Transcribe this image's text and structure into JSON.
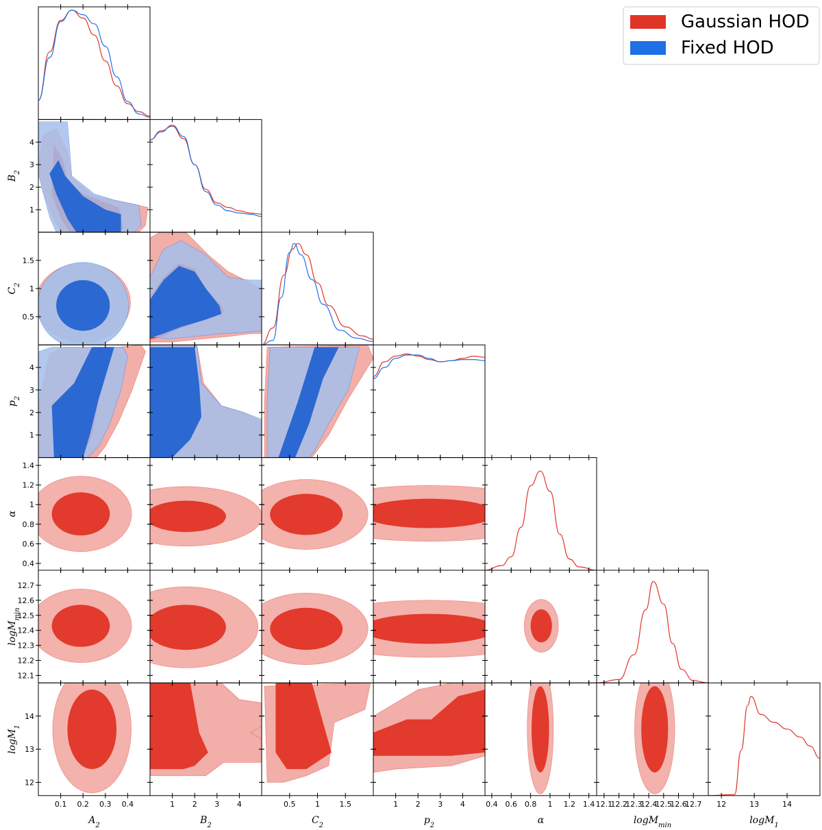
{
  "chart_data": {
    "type": "corner",
    "parameters": [
      {
        "key": "A2",
        "label": "A",
        "sub": "2",
        "range": [
          0.0,
          0.5
        ],
        "ticks": [
          0.1,
          0.2,
          0.3,
          0.4
        ]
      },
      {
        "key": "B2",
        "label": "B",
        "sub": "2",
        "range": [
          0.0,
          5.0
        ],
        "ticks": [
          1,
          2,
          3,
          4
        ]
      },
      {
        "key": "C2",
        "label": "C",
        "sub": "2",
        "range": [
          0.0,
          2.0
        ],
        "ticks": [
          0.5,
          1.0,
          1.5
        ]
      },
      {
        "key": "p2",
        "label": "p",
        "sub": "2",
        "range": [
          0.0,
          5.0
        ],
        "ticks": [
          1,
          2,
          3,
          4
        ]
      },
      {
        "key": "alpha",
        "label": "α",
        "sub": "",
        "range": [
          0.33,
          1.48
        ],
        "ticks": [
          0.4,
          0.6,
          0.8,
          1.0,
          1.2,
          1.4
        ]
      },
      {
        "key": "logMmin",
        "label": "logM",
        "sub": "min",
        "range": [
          12.05,
          12.8
        ],
        "ticks": [
          12.1,
          12.2,
          12.3,
          12.4,
          12.5,
          12.6,
          12.7
        ]
      },
      {
        "key": "logM1",
        "label": "logM",
        "sub": "1",
        "range": [
          11.6,
          15.0
        ],
        "ticks": [
          12,
          13,
          14
        ]
      }
    ],
    "series": [
      {
        "name": "Gaussian HOD",
        "color": "#e03426",
        "color_inner": "#e03426",
        "color_outer": "#f2aaa4",
        "params": [
          "A2",
          "B2",
          "C2",
          "p2",
          "alpha",
          "logMmin",
          "logM1"
        ],
        "means": {
          "A2": 0.16,
          "B2": 1.0,
          "C2": 0.65,
          "p2": 2.5,
          "alpha": 0.9,
          "logMmin": 12.43,
          "logM1": 13.5
        },
        "marginals_peak": {
          "A2": 0.15,
          "B2": 1.0,
          "C2": 0.65,
          "alpha": 0.9,
          "logMmin": 12.43,
          "logM1": 12.9
        }
      },
      {
        "name": "Fixed HOD",
        "color": "#1f6fe6",
        "color_inner": "#2464d2",
        "color_outer": "#a6bfec",
        "params": [
          "A2",
          "B2",
          "C2",
          "p2"
        ],
        "means": {
          "A2": 0.16,
          "B2": 1.0,
          "C2": 0.6,
          "p2": 2.5
        },
        "marginals_peak": {
          "A2": 0.15,
          "B2": 1.0,
          "C2": 0.57
        }
      }
    ],
    "legend": {
      "position": "top-right",
      "entries": [
        "Gaussian HOD",
        "Fixed HOD"
      ]
    }
  }
}
